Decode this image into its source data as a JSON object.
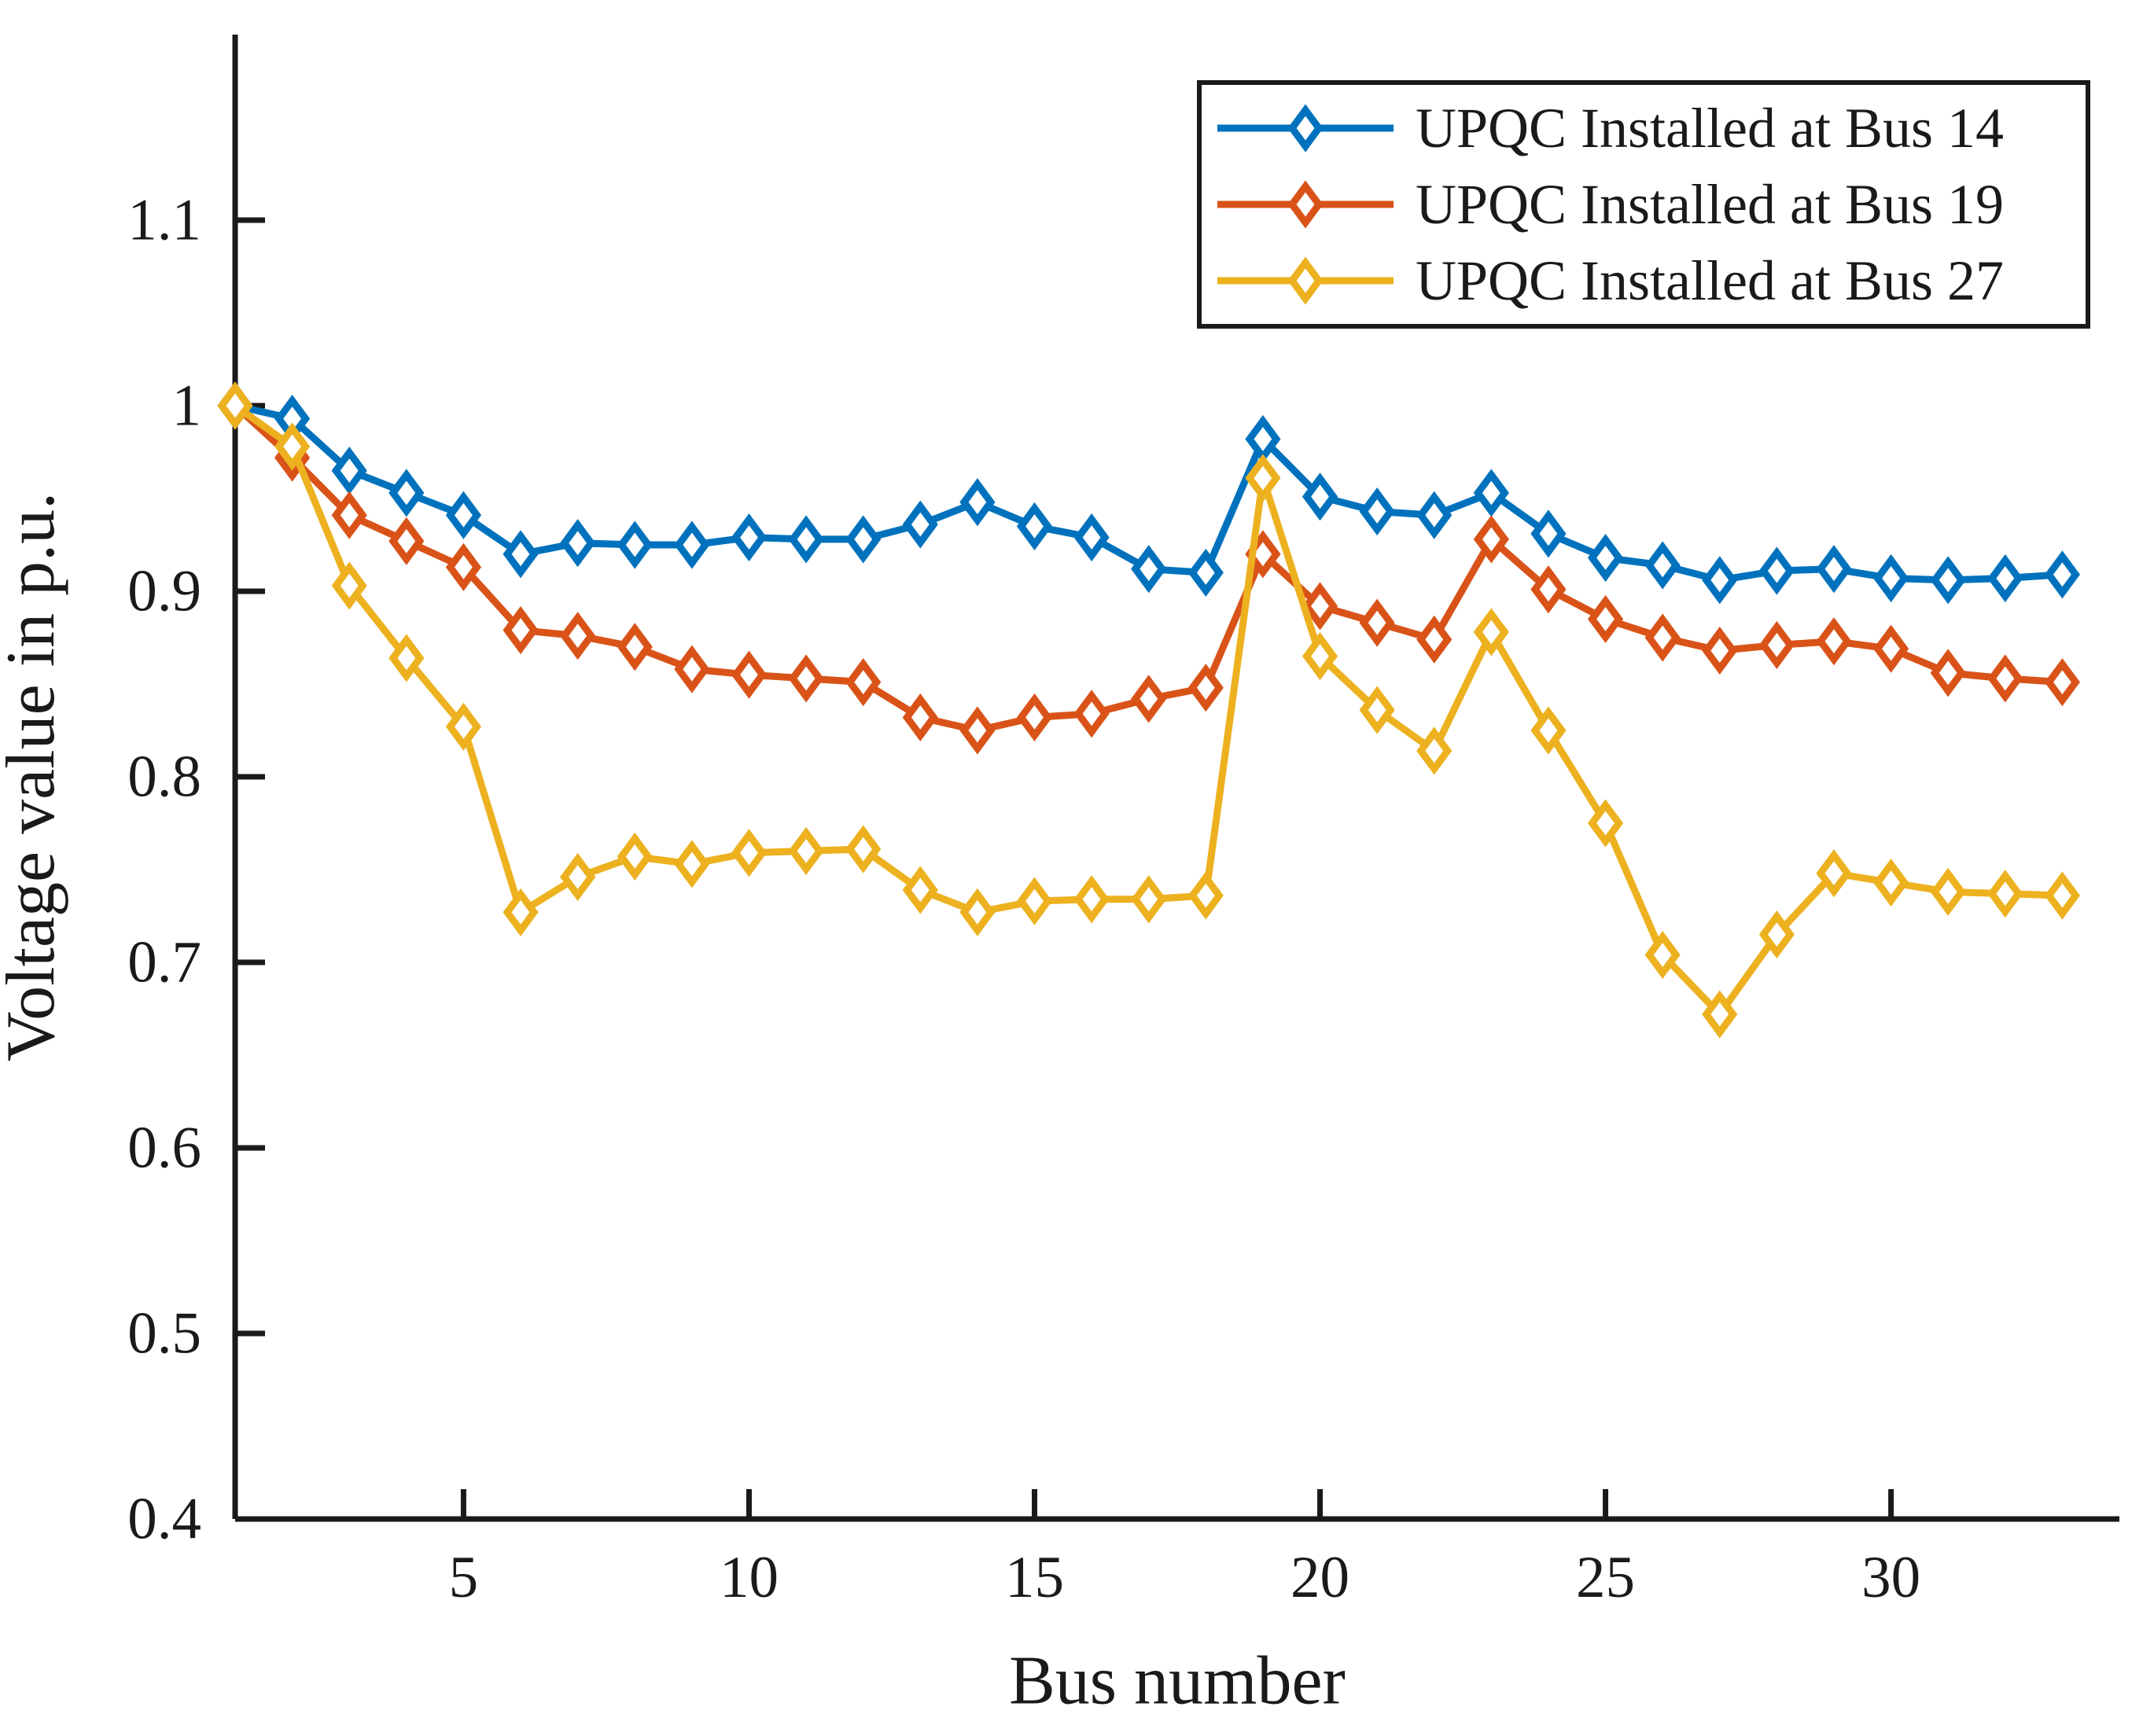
{
  "figure": {
    "background": "#ffffff",
    "axis_color": "#1a1a1a"
  },
  "chart_data": {
    "type": "line",
    "title": "",
    "xlabel": "Bus number",
    "ylabel": "Voltage value in p.u.",
    "xlim": [
      1,
      34
    ],
    "ylim": [
      0.4,
      1.2
    ],
    "x_ticks": [
      5,
      10,
      15,
      20,
      25,
      30
    ],
    "x_tick_labels": [
      "5",
      "10",
      "15",
      "20",
      "25",
      "30"
    ],
    "y_ticks": [
      0.4,
      0.5,
      0.6,
      0.7,
      0.8,
      0.9,
      1,
      1.1
    ],
    "y_tick_labels": [
      "0.4",
      "0.5",
      "0.6",
      "0.7",
      "0.8",
      "0.9",
      "1",
      "1.1"
    ],
    "grid": false,
    "marker": "diamond",
    "legend_position": "top-right-inside",
    "x": [
      1,
      2,
      3,
      4,
      5,
      6,
      7,
      8,
      9,
      10,
      11,
      12,
      13,
      14,
      15,
      16,
      17,
      18,
      19,
      20,
      21,
      22,
      23,
      24,
      25,
      26,
      27,
      28,
      29,
      30,
      31,
      32,
      33
    ],
    "series": [
      {
        "name": "UPQC Installed at Bus 14",
        "color": "#0072BD",
        "values": [
          1.0,
          0.993,
          0.965,
          0.953,
          0.941,
          0.92,
          0.926,
          0.925,
          0.925,
          0.929,
          0.928,
          0.928,
          0.936,
          0.948,
          0.935,
          0.929,
          0.912,
          0.91,
          0.982,
          0.951,
          0.943,
          0.941,
          0.953,
          0.931,
          0.918,
          0.914,
          0.906,
          0.911,
          0.912,
          0.907,
          0.906,
          0.907,
          0.909
        ]
      },
      {
        "name": "UPQC Installed at Bus 19",
        "color": "#D95319",
        "values": [
          1.0,
          0.972,
          0.941,
          0.927,
          0.913,
          0.879,
          0.876,
          0.87,
          0.858,
          0.855,
          0.853,
          0.851,
          0.832,
          0.825,
          0.832,
          0.834,
          0.842,
          0.848,
          0.92,
          0.892,
          0.883,
          0.874,
          0.928,
          0.901,
          0.885,
          0.875,
          0.868,
          0.871,
          0.873,
          0.869,
          0.856,
          0.853,
          0.851
        ]
      },
      {
        "name": "UPQC Installed at Bus 27",
        "color": "#EDB120",
        "values": [
          1.0,
          0.978,
          0.903,
          0.864,
          0.827,
          0.727,
          0.746,
          0.757,
          0.753,
          0.759,
          0.76,
          0.761,
          0.739,
          0.727,
          0.733,
          0.734,
          0.734,
          0.736,
          0.961,
          0.865,
          0.836,
          0.814,
          0.878,
          0.825,
          0.775,
          0.704,
          0.672,
          0.715,
          0.748,
          0.743,
          0.738,
          0.737,
          0.736
        ]
      }
    ]
  }
}
